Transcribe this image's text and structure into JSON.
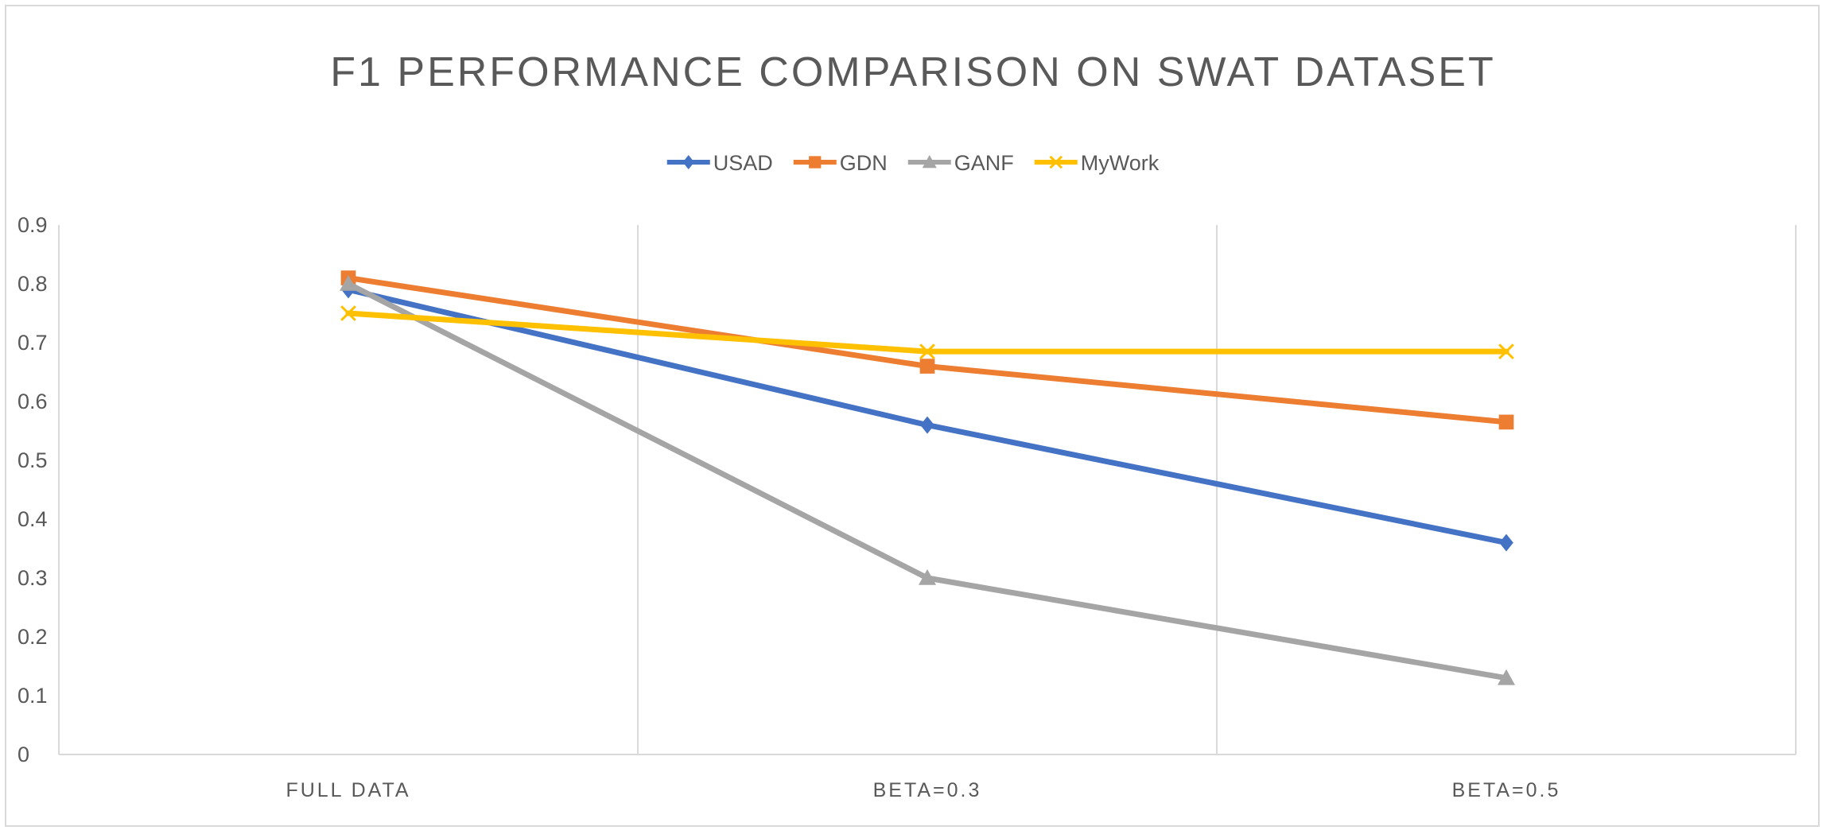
{
  "chart_data": {
    "type": "line",
    "title": "F1 PERFORMANCE COMPARISON ON SWAT DATASET",
    "xlabel": "",
    "ylabel": "",
    "categories": [
      "FULL DATA",
      "BETA=0.3",
      "BETA=0.5"
    ],
    "ylim": [
      0,
      0.9
    ],
    "yticks": [
      "0",
      "0.1",
      "0.2",
      "0.3",
      "0.4",
      "0.5",
      "0.6",
      "0.7",
      "0.8",
      "0.9"
    ],
    "grid": "vertical",
    "legend_position": "top",
    "series": [
      {
        "name": "USAD",
        "values": [
          0.79,
          0.56,
          0.36
        ],
        "color": "#4472C4",
        "marker": "diamond"
      },
      {
        "name": "GDN",
        "values": [
          0.81,
          0.66,
          0.565
        ],
        "color": "#ED7D31",
        "marker": "square"
      },
      {
        "name": "GANF",
        "values": [
          0.8,
          0.3,
          0.13
        ],
        "color": "#A5A5A5",
        "marker": "triangle"
      },
      {
        "name": "MyWork",
        "values": [
          0.75,
          0.685,
          0.685
        ],
        "color": "#FFC000",
        "marker": "x"
      }
    ]
  }
}
